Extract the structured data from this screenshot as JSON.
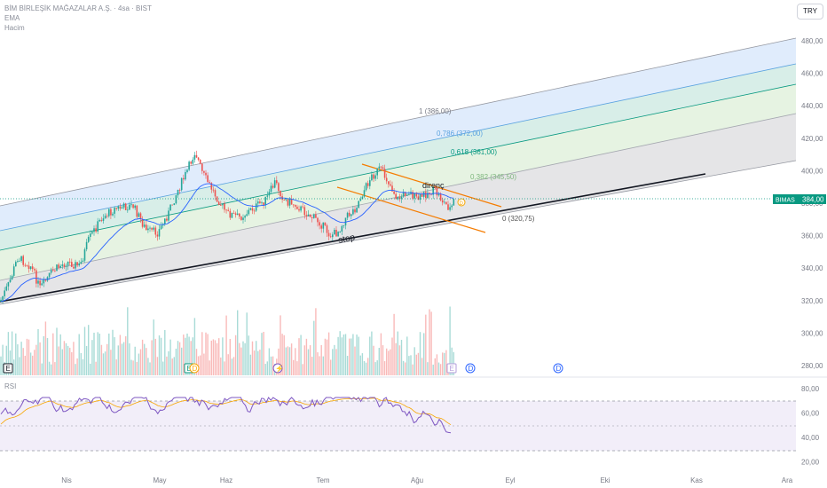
{
  "header": {
    "symbol_line": "BİM BİRLEŞİK MAĞAZALAR A.Ş. · 4sa · BIST",
    "indicator_1": "EMA",
    "indicator_2": "Hacim",
    "currency": "TRY"
  },
  "price_badge": {
    "ticker": "BIMAS",
    "value": "384,00"
  },
  "price_axis": [
    "480,00",
    "460,00",
    "440,00",
    "420,00",
    "400,00",
    "380,00",
    "360,00",
    "340,00",
    "320,00",
    "300,00",
    "280,00"
  ],
  "rsi": {
    "title": "RSI",
    "axis": [
      "80,00",
      "60,00",
      "40,00",
      "20,00"
    ]
  },
  "time_axis": [
    "Nis",
    "May",
    "Haz",
    "Tem",
    "Ağu",
    "Eyl",
    "Eki",
    "Kas",
    "Ara"
  ],
  "fib_levels": [
    {
      "label": "1 (386,00)",
      "color": "#787b86"
    },
    {
      "label": "0,786 (372,00)",
      "color": "#5ba3e0"
    },
    {
      "label": "0,618 (361,00)",
      "color": "#089981"
    },
    {
      "label": "0,382 (345,50)",
      "color": "#7fb77e"
    },
    {
      "label": "0 (320,75)",
      "color": "#555555"
    }
  ],
  "annotations": {
    "resistance": "direnç",
    "stop": "stop"
  },
  "events": [
    {
      "letter": "E",
      "type": "earnings"
    },
    {
      "letter": "E",
      "type": "earnings"
    },
    {
      "letter": "D",
      "type": "dividend"
    },
    {
      "letter": "⚡",
      "type": "split"
    },
    {
      "letter": "E",
      "type": "earnings"
    },
    {
      "letter": "D",
      "type": "dividend"
    },
    {
      "letter": "D",
      "type": "dividend"
    }
  ],
  "colors": {
    "up": "#26a69a",
    "down": "#ef5350",
    "ema": "#2962ff",
    "rsi": "#7e57c2",
    "rsi_ma": "#f7a600",
    "channel": "#f57c00"
  }
}
